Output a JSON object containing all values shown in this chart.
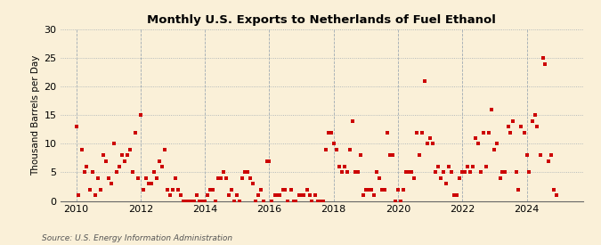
{
  "title": "Monthly U.S. Exports to Netherlands of Fuel Ethanol",
  "ylabel": "Thousand Barrels per Day",
  "source": "Source: U.S. Energy Information Administration",
  "background_color": "#faf0d8",
  "plot_bg_color": "#faf0d8",
  "marker_color": "#cc0000",
  "h_grid_color": "#8899aa",
  "v_grid_color": "#8899aa",
  "ylim": [
    0,
    30
  ],
  "yticks": [
    0,
    5,
    10,
    15,
    20,
    25,
    30
  ],
  "xlim_start": 2009.5,
  "xlim_end": 2025.75,
  "xticks": [
    2010,
    2012,
    2014,
    2016,
    2018,
    2020,
    2022,
    2024
  ],
  "data": [
    [
      2010.0,
      13
    ],
    [
      2010.08,
      1
    ],
    [
      2010.17,
      9
    ],
    [
      2010.25,
      5
    ],
    [
      2010.33,
      6
    ],
    [
      2010.42,
      2
    ],
    [
      2010.5,
      5
    ],
    [
      2010.58,
      1
    ],
    [
      2010.67,
      4
    ],
    [
      2010.75,
      2
    ],
    [
      2010.83,
      8
    ],
    [
      2010.92,
      7
    ],
    [
      2011.0,
      4
    ],
    [
      2011.08,
      3
    ],
    [
      2011.17,
      10
    ],
    [
      2011.25,
      5
    ],
    [
      2011.33,
      6
    ],
    [
      2011.42,
      8
    ],
    [
      2011.5,
      7
    ],
    [
      2011.58,
      8
    ],
    [
      2011.67,
      9
    ],
    [
      2011.75,
      5
    ],
    [
      2011.83,
      12
    ],
    [
      2011.92,
      4
    ],
    [
      2012.0,
      15
    ],
    [
      2012.08,
      2
    ],
    [
      2012.17,
      4
    ],
    [
      2012.25,
      3
    ],
    [
      2012.33,
      3
    ],
    [
      2012.42,
      5
    ],
    [
      2012.5,
      4
    ],
    [
      2012.58,
      7
    ],
    [
      2012.67,
      6
    ],
    [
      2012.75,
      9
    ],
    [
      2012.83,
      2
    ],
    [
      2012.92,
      1
    ],
    [
      2013.0,
      2
    ],
    [
      2013.08,
      4
    ],
    [
      2013.17,
      2
    ],
    [
      2013.25,
      1
    ],
    [
      2013.33,
      0
    ],
    [
      2013.42,
      0
    ],
    [
      2013.5,
      0
    ],
    [
      2013.58,
      0
    ],
    [
      2013.67,
      0
    ],
    [
      2013.75,
      1
    ],
    [
      2013.83,
      0
    ],
    [
      2013.92,
      0
    ],
    [
      2014.0,
      0
    ],
    [
      2014.08,
      1
    ],
    [
      2014.17,
      2
    ],
    [
      2014.25,
      2
    ],
    [
      2014.33,
      0
    ],
    [
      2014.42,
      4
    ],
    [
      2014.5,
      4
    ],
    [
      2014.58,
      5
    ],
    [
      2014.67,
      4
    ],
    [
      2014.75,
      1
    ],
    [
      2014.83,
      2
    ],
    [
      2014.92,
      0
    ],
    [
      2015.0,
      1
    ],
    [
      2015.08,
      0
    ],
    [
      2015.17,
      4
    ],
    [
      2015.25,
      5
    ],
    [
      2015.33,
      5
    ],
    [
      2015.42,
      4
    ],
    [
      2015.5,
      3
    ],
    [
      2015.58,
      0
    ],
    [
      2015.67,
      1
    ],
    [
      2015.75,
      2
    ],
    [
      2015.83,
      0
    ],
    [
      2015.92,
      7
    ],
    [
      2016.0,
      7
    ],
    [
      2016.08,
      0
    ],
    [
      2016.17,
      1
    ],
    [
      2016.25,
      1
    ],
    [
      2016.33,
      1
    ],
    [
      2016.42,
      2
    ],
    [
      2016.5,
      2
    ],
    [
      2016.58,
      0
    ],
    [
      2016.67,
      2
    ],
    [
      2016.75,
      0
    ],
    [
      2016.83,
      0
    ],
    [
      2016.92,
      1
    ],
    [
      2017.0,
      1
    ],
    [
      2017.08,
      1
    ],
    [
      2017.17,
      2
    ],
    [
      2017.25,
      1
    ],
    [
      2017.33,
      0
    ],
    [
      2017.42,
      1
    ],
    [
      2017.5,
      0
    ],
    [
      2017.58,
      0
    ],
    [
      2017.67,
      0
    ],
    [
      2017.75,
      9
    ],
    [
      2017.83,
      12
    ],
    [
      2017.92,
      12
    ],
    [
      2018.0,
      10
    ],
    [
      2018.08,
      9
    ],
    [
      2018.17,
      6
    ],
    [
      2018.25,
      5
    ],
    [
      2018.33,
      6
    ],
    [
      2018.42,
      5
    ],
    [
      2018.5,
      9
    ],
    [
      2018.58,
      14
    ],
    [
      2018.67,
      5
    ],
    [
      2018.75,
      5
    ],
    [
      2018.83,
      8
    ],
    [
      2018.92,
      1
    ],
    [
      2019.0,
      2
    ],
    [
      2019.08,
      2
    ],
    [
      2019.17,
      2
    ],
    [
      2019.25,
      1
    ],
    [
      2019.33,
      5
    ],
    [
      2019.42,
      4
    ],
    [
      2019.5,
      2
    ],
    [
      2019.58,
      2
    ],
    [
      2019.67,
      12
    ],
    [
      2019.75,
      8
    ],
    [
      2019.83,
      8
    ],
    [
      2019.92,
      0
    ],
    [
      2020.0,
      2
    ],
    [
      2020.08,
      0
    ],
    [
      2020.17,
      2
    ],
    [
      2020.25,
      5
    ],
    [
      2020.33,
      5
    ],
    [
      2020.42,
      5
    ],
    [
      2020.5,
      4
    ],
    [
      2020.58,
      12
    ],
    [
      2020.67,
      8
    ],
    [
      2020.75,
      12
    ],
    [
      2020.83,
      21
    ],
    [
      2020.92,
      10
    ],
    [
      2021.0,
      11
    ],
    [
      2021.08,
      10
    ],
    [
      2021.17,
      5
    ],
    [
      2021.25,
      6
    ],
    [
      2021.33,
      4
    ],
    [
      2021.42,
      5
    ],
    [
      2021.5,
      3
    ],
    [
      2021.58,
      6
    ],
    [
      2021.67,
      5
    ],
    [
      2021.75,
      1
    ],
    [
      2021.83,
      1
    ],
    [
      2021.92,
      4
    ],
    [
      2022.0,
      5
    ],
    [
      2022.08,
      5
    ],
    [
      2022.17,
      6
    ],
    [
      2022.25,
      5
    ],
    [
      2022.33,
      6
    ],
    [
      2022.42,
      11
    ],
    [
      2022.5,
      10
    ],
    [
      2022.58,
      5
    ],
    [
      2022.67,
      12
    ],
    [
      2022.75,
      6
    ],
    [
      2022.83,
      12
    ],
    [
      2022.92,
      16
    ],
    [
      2023.0,
      9
    ],
    [
      2023.08,
      10
    ],
    [
      2023.17,
      4
    ],
    [
      2023.25,
      5
    ],
    [
      2023.33,
      5
    ],
    [
      2023.42,
      13
    ],
    [
      2023.5,
      12
    ],
    [
      2023.58,
      14
    ],
    [
      2023.67,
      5
    ],
    [
      2023.75,
      2
    ],
    [
      2023.83,
      13
    ],
    [
      2023.92,
      12
    ],
    [
      2024.0,
      8
    ],
    [
      2024.08,
      5
    ],
    [
      2024.17,
      14
    ],
    [
      2024.25,
      15
    ],
    [
      2024.33,
      13
    ],
    [
      2024.42,
      8
    ],
    [
      2024.5,
      25
    ],
    [
      2024.58,
      24
    ],
    [
      2024.67,
      7
    ],
    [
      2024.75,
      8
    ],
    [
      2024.83,
      2
    ],
    [
      2024.92,
      1
    ]
  ]
}
